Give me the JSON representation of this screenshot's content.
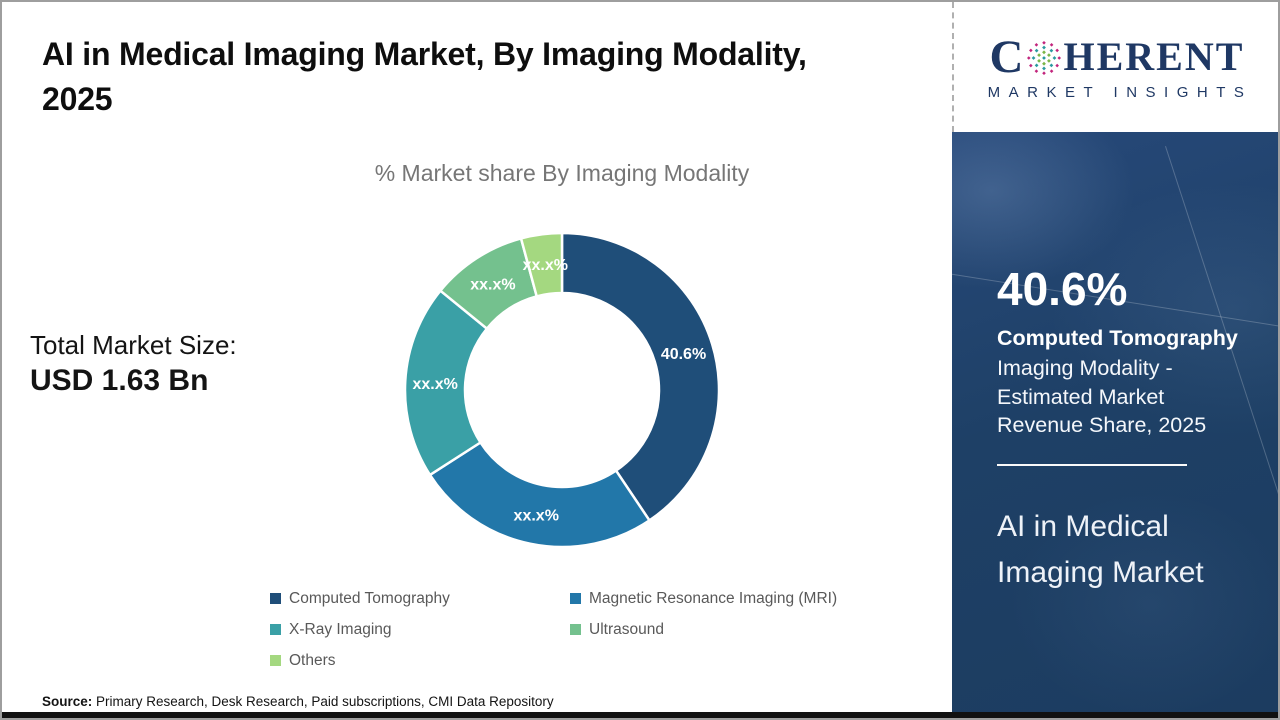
{
  "header": {
    "title": "AI in Medical Imaging Market, By Imaging Modality, 2025"
  },
  "chart_data": {
    "type": "pie",
    "donut": true,
    "title": "% Market share By Imaging Modality",
    "start_angle_deg": 0,
    "categories": [
      "Computed Tomography",
      "Magnetic Resonance Imaging (MRI)",
      "X-Ray Imaging",
      "Ultrasound",
      "Others"
    ],
    "values": [
      40.6,
      25.3,
      20.0,
      9.9,
      4.2
    ],
    "labels": [
      "40.6%",
      "xx.x%",
      "xx.x%",
      "xx.x%",
      "xx.x%"
    ],
    "colors": [
      "#1f4e79",
      "#2277a9",
      "#3aa0a6",
      "#74c18e",
      "#a4d880"
    ],
    "legend_position": "bottom"
  },
  "market": {
    "label": "Total Market Size:",
    "value": "USD 1.63 Bn"
  },
  "source": {
    "label": "Source:",
    "text": " Primary Research, Desk Research, Paid subscriptions, CMI Data Repository"
  },
  "sidebar": {
    "logo": {
      "word_start": "C",
      "word_end": "HERENT",
      "tagline": "MARKET INSIGHTS",
      "text_color": "#1f3864",
      "globe_colors": [
        "#c2247c",
        "#2b9aa0",
        "#7ab648"
      ]
    },
    "highlight_value": "40.6%",
    "highlight_title": "Computed Tomography",
    "highlight_desc": "Imaging Modality - Estimated Market Revenue Share, 2025",
    "market_name": "AI in Medical Imaging Market",
    "panel_color": "#1e4066"
  }
}
